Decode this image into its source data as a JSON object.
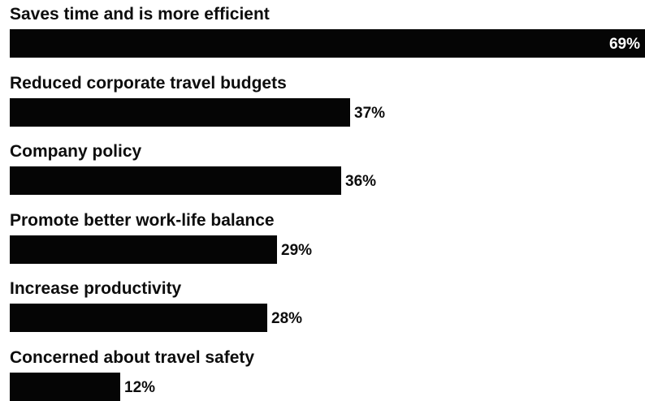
{
  "chart_data": {
    "type": "bar",
    "orientation": "horizontal",
    "categories": [
      "Saves time and is more efficient",
      "Reduced corporate travel budgets",
      "Company policy",
      "Promote better work-life balance",
      "Increase productivity",
      "Concerned about travel safety"
    ],
    "values": [
      69,
      37,
      36,
      29,
      28,
      12
    ],
    "value_labels": [
      "69%",
      "37%",
      "36%",
      "29%",
      "28%",
      "12%"
    ],
    "xlim": [
      0,
      69
    ],
    "grid": false,
    "legend": "none",
    "colors": {
      "bar": "#050505",
      "text": "#0d0d0d",
      "label_inside": "#ffffff",
      "background": "#ffffff"
    }
  }
}
